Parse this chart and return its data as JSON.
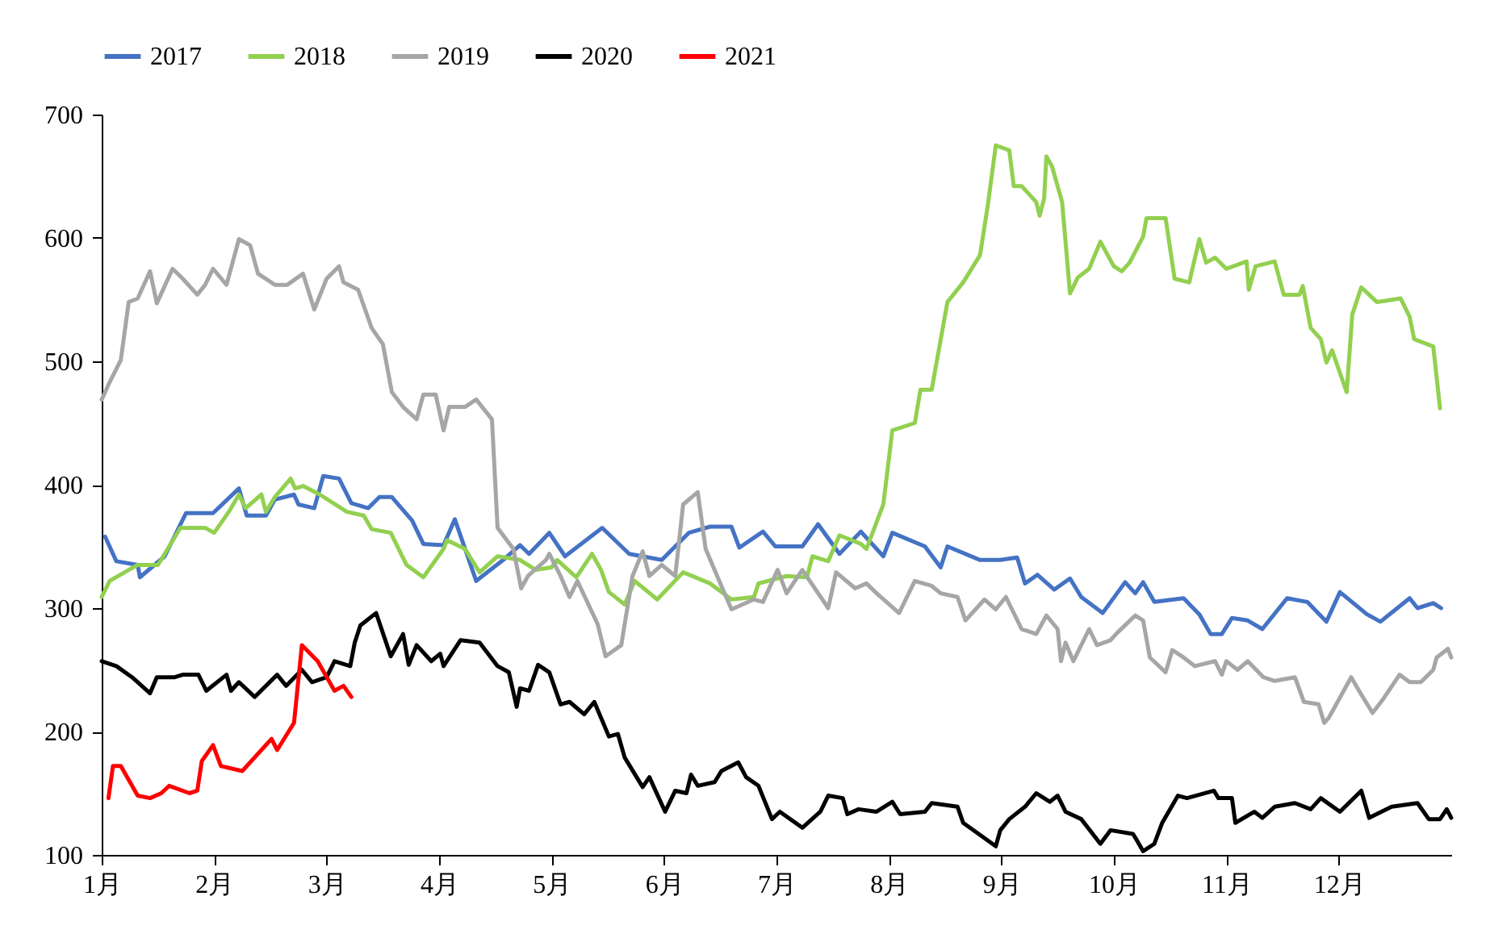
{
  "chart_data": {
    "type": "line",
    "xlim": [
      1,
      13
    ],
    "xticks": [
      {
        "value": 1,
        "label": "1月"
      },
      {
        "value": 2,
        "label": "2月"
      },
      {
        "value": 3,
        "label": "3月"
      },
      {
        "value": 4,
        "label": "4月"
      },
      {
        "value": 5,
        "label": "5月"
      },
      {
        "value": 6,
        "label": "6月"
      },
      {
        "value": 7,
        "label": "7月"
      },
      {
        "value": 8,
        "label": "8月"
      },
      {
        "value": 9,
        "label": "9月"
      },
      {
        "value": 10,
        "label": "10月"
      },
      {
        "value": 11,
        "label": "11月"
      },
      {
        "value": 12,
        "label": "12月"
      }
    ],
    "ylim": [
      100,
      700
    ],
    "yticks": [
      100,
      200,
      300,
      400,
      500,
      600,
      700
    ],
    "legend": "top",
    "series": [
      {
        "name": "2017",
        "color": "#4472c4",
        "x": [
          1.03,
          1.13,
          1.32,
          1.34,
          1.56,
          1.75,
          1.99,
          2.22,
          2.29,
          2.46,
          2.54,
          2.71,
          2.75,
          2.89,
          2.97,
          3.11,
          3.22,
          3.37,
          3.47,
          3.58,
          3.76,
          3.86,
          4.04,
          4.14,
          4.33,
          4.57,
          4.72,
          4.8,
          4.98,
          5.12,
          5.45,
          5.69,
          5.98,
          6.22,
          6.41,
          6.6,
          6.67,
          6.88,
          6.99,
          7.23,
          7.37,
          7.56,
          7.75,
          7.95,
          8.03,
          8.32,
          8.46,
          8.52,
          8.81,
          8.99,
          9.14,
          9.21,
          9.32,
          9.47,
          9.61,
          9.71,
          9.9,
          10.1,
          10.19,
          10.26,
          10.36,
          10.62,
          10.76,
          10.86,
          10.96,
          11.05,
          11.19,
          11.32,
          11.54,
          11.72,
          11.89,
          12.01,
          12.25,
          12.37,
          12.63,
          12.7,
          12.84,
          12.91
        ],
        "values": [
          358,
          338,
          335,
          325,
          342,
          377,
          377,
          397,
          375,
          375,
          388,
          392,
          384,
          381,
          407,
          405,
          385,
          381,
          390,
          390,
          371,
          352,
          351,
          372,
          322,
          339,
          351,
          344,
          361,
          342,
          365,
          344,
          339,
          361,
          366,
          366,
          349,
          362,
          350,
          350,
          368,
          344,
          362,
          342,
          361,
          350,
          333,
          350,
          339,
          339,
          341,
          320,
          327,
          315,
          324,
          309,
          296,
          321,
          312,
          321,
          305,
          308,
          295,
          279,
          279,
          292,
          290,
          283,
          308,
          305,
          289,
          313,
          295,
          289,
          308,
          300,
          304,
          300
        ]
      },
      {
        "name": "2018",
        "color": "#92d050",
        "x": [
          1.0,
          1.07,
          1.24,
          1.32,
          1.5,
          1.7,
          1.92,
          2.0,
          2.13,
          2.22,
          2.28,
          2.42,
          2.46,
          2.54,
          2.68,
          2.72,
          2.79,
          2.94,
          3.18,
          3.33,
          3.4,
          3.57,
          3.71,
          3.86,
          4.04,
          4.07,
          4.23,
          4.36,
          4.52,
          4.72,
          4.86,
          5.0,
          5.05,
          5.22,
          5.36,
          5.44,
          5.51,
          5.65,
          5.74,
          5.94,
          6.17,
          6.41,
          6.6,
          6.8,
          6.84,
          7.09,
          7.27,
          7.32,
          7.46,
          7.56,
          7.75,
          7.8,
          7.95,
          8.03,
          8.23,
          8.28,
          8.38,
          8.52,
          8.66,
          8.81,
          8.88,
          8.95,
          9.07,
          9.11,
          9.18,
          9.31,
          9.34,
          9.38,
          9.4,
          9.45,
          9.54,
          9.61,
          9.68,
          9.78,
          9.88,
          10.0,
          10.07,
          10.14,
          10.26,
          10.29,
          10.46,
          10.54,
          10.67,
          10.76,
          10.82,
          10.9,
          11.0,
          11.18,
          11.2,
          11.26,
          11.43,
          11.51,
          11.65,
          11.68,
          11.75,
          11.84,
          11.89,
          11.94,
          12.07,
          12.12,
          12.2,
          12.34,
          12.55,
          12.63,
          12.67,
          12.84,
          12.9
        ],
        "values": [
          309,
          322,
          331,
          335,
          335,
          365,
          365,
          361,
          378,
          392,
          381,
          392,
          378,
          390,
          405,
          397,
          399,
          392,
          378,
          375,
          364,
          361,
          335,
          325,
          348,
          355,
          348,
          329,
          342,
          339,
          331,
          333,
          339,
          325,
          344,
          331,
          313,
          303,
          322,
          307,
          329,
          320,
          307,
          309,
          320,
          326,
          325,
          342,
          338,
          359,
          352,
          348,
          384,
          444,
          450,
          477,
          477,
          548,
          564,
          586,
          627,
          675,
          671,
          642,
          642,
          629,
          618,
          632,
          666,
          658,
          629,
          555,
          568,
          575,
          597,
          577,
          573,
          580,
          601,
          616,
          616,
          567,
          564,
          599,
          580,
          584,
          575,
          581,
          558,
          577,
          581,
          554,
          554,
          561,
          527,
          518,
          499,
          509,
          475,
          538,
          560,
          548,
          551,
          536,
          518,
          512,
          462
        ]
      },
      {
        "name": "2019",
        "color": "#a6a6a6",
        "x": [
          1.0,
          1.07,
          1.17,
          1.24,
          1.32,
          1.43,
          1.49,
          1.63,
          1.72,
          1.85,
          1.92,
          1.99,
          2.11,
          2.22,
          2.32,
          2.39,
          2.54,
          2.65,
          2.79,
          2.89,
          3.0,
          3.11,
          3.15,
          3.28,
          3.4,
          3.5,
          3.58,
          3.68,
          3.8,
          3.86,
          3.97,
          4.04,
          4.09,
          4.23,
          4.33,
          4.47,
          4.52,
          4.66,
          4.73,
          4.79,
          4.95,
          4.98,
          5.08,
          5.16,
          5.23,
          5.41,
          5.48,
          5.62,
          5.72,
          5.81,
          5.87,
          5.98,
          6.1,
          6.17,
          6.3,
          6.37,
          6.51,
          6.6,
          6.8,
          6.88,
          7.01,
          7.09,
          7.23,
          7.46,
          7.53,
          7.7,
          7.8,
          7.89,
          8.09,
          8.23,
          8.38,
          8.46,
          8.61,
          8.68,
          8.78,
          8.85,
          8.95,
          9.04,
          9.18,
          9.31,
          9.4,
          9.5,
          9.53,
          9.57,
          9.64,
          9.78,
          9.85,
          9.97,
          10.03,
          10.19,
          10.26,
          10.32,
          10.46,
          10.52,
          10.62,
          10.72,
          10.9,
          10.96,
          11.0,
          11.1,
          11.19,
          11.33,
          11.43,
          11.61,
          11.69,
          11.82,
          11.87,
          11.91,
          12.11,
          12.18,
          12.3,
          12.4,
          12.54,
          12.63,
          12.73,
          12.84,
          12.87,
          12.97,
          13.0
        ],
        "values": [
          469,
          483,
          501,
          548,
          551,
          573,
          547,
          575,
          567,
          554,
          562,
          575,
          562,
          599,
          594,
          571,
          562,
          562,
          571,
          542,
          567,
          577,
          564,
          558,
          527,
          514,
          475,
          463,
          453,
          473,
          473,
          444,
          463,
          463,
          469,
          453,
          365,
          348,
          316,
          326,
          339,
          344,
          326,
          309,
          322,
          287,
          261,
          270,
          326,
          346,
          326,
          335,
          326,
          384,
          394,
          348,
          318,
          299,
          307,
          305,
          331,
          312,
          331,
          300,
          329,
          316,
          320,
          312,
          296,
          322,
          318,
          312,
          309,
          290,
          300,
          307,
          299,
          309,
          283,
          279,
          294,
          283,
          257,
          272,
          257,
          283,
          270,
          274,
          280,
          294,
          290,
          260,
          248,
          266,
          260,
          253,
          257,
          246,
          257,
          250,
          257,
          244,
          241,
          244,
          224,
          222,
          207,
          211,
          244,
          233,
          215,
          227,
          246,
          240,
          240,
          250,
          260,
          267,
          260
        ]
      },
      {
        "name": "2020",
        "color": "#000000",
        "x": [
          1.0,
          1.13,
          1.27,
          1.43,
          1.49,
          1.65,
          1.72,
          1.86,
          1.93,
          2.11,
          2.15,
          2.22,
          2.36,
          2.56,
          2.64,
          2.78,
          2.87,
          3.0,
          3.07,
          3.21,
          3.25,
          3.3,
          3.44,
          3.57,
          3.68,
          3.73,
          3.8,
          3.93,
          4.01,
          4.04,
          4.19,
          4.36,
          4.52,
          4.62,
          4.69,
          4.72,
          4.8,
          4.88,
          4.98,
          5.08,
          5.16,
          5.29,
          5.38,
          5.51,
          5.59,
          5.65,
          5.81,
          5.87,
          6.01,
          6.1,
          6.2,
          6.24,
          6.3,
          6.45,
          6.51,
          6.66,
          6.73,
          6.84,
          6.96,
          7.03,
          7.23,
          7.39,
          7.46,
          7.59,
          7.63,
          7.73,
          7.89,
          8.03,
          8.1,
          8.32,
          8.38,
          8.61,
          8.66,
          8.95,
          8.99,
          9.07,
          9.21,
          9.31,
          9.43,
          9.5,
          9.57,
          9.71,
          9.88,
          9.97,
          10.17,
          10.21,
          10.26,
          10.36,
          10.43,
          10.57,
          10.65,
          10.89,
          10.93,
          11.05,
          11.08,
          11.25,
          11.32,
          11.43,
          11.61,
          11.75,
          11.84,
          12.01,
          12.2,
          12.27,
          12.47,
          12.7,
          12.8,
          12.9,
          12.96,
          13.0
        ],
        "values": [
          257,
          253,
          244,
          231,
          244,
          244,
          246,
          246,
          233,
          246,
          233,
          240,
          228,
          246,
          237,
          250,
          240,
          244,
          257,
          253,
          272,
          286,
          296,
          261,
          279,
          254,
          270,
          257,
          263,
          253,
          274,
          272,
          253,
          248,
          220,
          235,
          233,
          254,
          248,
          222,
          224,
          214,
          224,
          196,
          198,
          179,
          155,
          163,
          135,
          152,
          150,
          165,
          156,
          159,
          168,
          175,
          163,
          156,
          129,
          135,
          122,
          135,
          148,
          146,
          133,
          137,
          135,
          143,
          133,
          135,
          142,
          139,
          126,
          107,
          120,
          129,
          139,
          150,
          143,
          148,
          135,
          129,
          109,
          120,
          117,
          111,
          103,
          109,
          126,
          148,
          146,
          152,
          146,
          146,
          126,
          135,
          130,
          139,
          142,
          137,
          146,
          135,
          152,
          130,
          139,
          142,
          129,
          129,
          137,
          130
        ]
      },
      {
        "name": "2021",
        "color": "#ff0000",
        "x": [
          1.06,
          1.1,
          1.17,
          1.32,
          1.43,
          1.53,
          1.6,
          1.78,
          1.85,
          1.89,
          1.99,
          2.06,
          2.25,
          2.51,
          2.56,
          2.71,
          2.78,
          2.92,
          3.07,
          3.15,
          3.22
        ],
        "values": [
          146,
          172,
          172,
          148,
          146,
          150,
          156,
          150,
          152,
          176,
          189,
          172,
          168,
          194,
          185,
          207,
          270,
          257,
          233,
          237,
          228
        ]
      }
    ]
  }
}
